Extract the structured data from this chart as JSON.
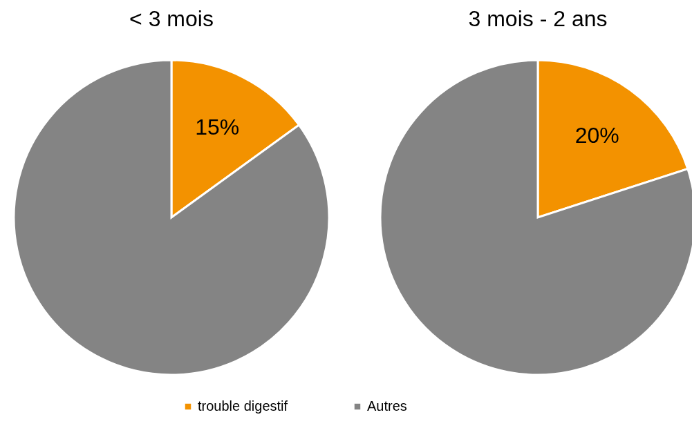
{
  "chart_data": [
    {
      "type": "pie",
      "title": "< 3 mois",
      "categories": [
        "trouble digestif",
        "Autres"
      ],
      "values": [
        15,
        85
      ],
      "colors": [
        "#f39200",
        "#848484"
      ],
      "value_labels": [
        "15%",
        null
      ],
      "legend": "bottom"
    },
    {
      "type": "pie",
      "title": "3 mois - 2 ans",
      "categories": [
        null,
        null
      ],
      "values": [
        20,
        80
      ],
      "colors": [
        "#f39200",
        "#848484"
      ],
      "value_labels": [
        "20%",
        null
      ]
    }
  ]
}
